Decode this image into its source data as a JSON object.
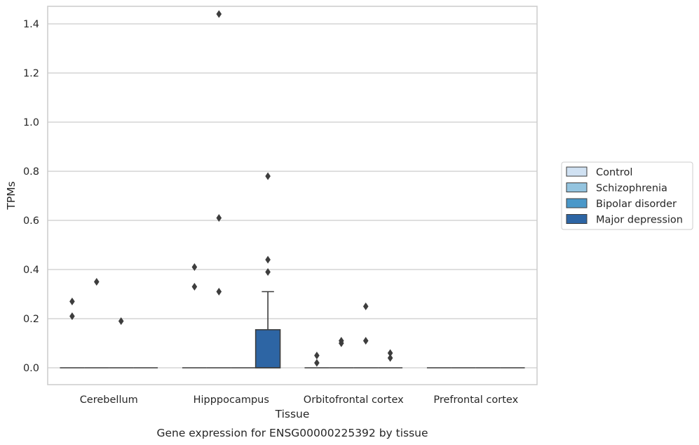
{
  "chart_data": {
    "type": "box",
    "xlabel": "Tissue",
    "ylabel": "TPMs",
    "caption": "Gene expression for ENSG00000225392 by tissue",
    "ylim": [
      -0.07,
      1.51
    ],
    "yticks": [
      0.0,
      0.2,
      0.4,
      0.6,
      0.8,
      1.0,
      1.2,
      1.4
    ],
    "ytick_labels": [
      "0.0",
      "0.2",
      "0.4",
      "0.6",
      "0.8",
      "1.0",
      "1.2",
      "1.4"
    ],
    "grid": "horizontal",
    "legend_position": "right",
    "categories": [
      "Cerebellum",
      "Hipppocampus",
      "Orbitofrontal cortex",
      "Prefrontal cortex"
    ],
    "series": [
      {
        "name": "Control",
        "color": "#d0e1f2"
      },
      {
        "name": "Schizophrenia",
        "color": "#94c4df"
      },
      {
        "name": "Bipolar disorder",
        "color": "#4a98c9"
      },
      {
        "name": "Major depression",
        "color": "#2d65a4"
      }
    ],
    "boxes": [
      {
        "category": 0,
        "series": 0,
        "q1": 0,
        "median": 0,
        "q3": 0,
        "whisker_low": 0,
        "whisker_high": 0,
        "outliers": [
          0.27,
          0.21
        ]
      },
      {
        "category": 0,
        "series": 1,
        "q1": 0,
        "median": 0,
        "q3": 0,
        "whisker_low": 0,
        "whisker_high": 0,
        "outliers": [
          0.35
        ]
      },
      {
        "category": 0,
        "series": 2,
        "q1": 0,
        "median": 0,
        "q3": 0,
        "whisker_low": 0,
        "whisker_high": 0,
        "outliers": [
          0.19
        ]
      },
      {
        "category": 0,
        "series": 3,
        "q1": 0,
        "median": 0,
        "q3": 0,
        "whisker_low": 0,
        "whisker_high": 0,
        "outliers": []
      },
      {
        "category": 1,
        "series": 0,
        "q1": 0,
        "median": 0,
        "q3": 0,
        "whisker_low": 0,
        "whisker_high": 0,
        "outliers": [
          0.41,
          0.33
        ]
      },
      {
        "category": 1,
        "series": 1,
        "q1": 0,
        "median": 0,
        "q3": 0,
        "whisker_low": 0,
        "whisker_high": 0,
        "outliers": [
          1.44,
          0.61,
          0.31
        ]
      },
      {
        "category": 1,
        "series": 2,
        "q1": 0,
        "median": 0,
        "q3": 0,
        "whisker_low": 0,
        "whisker_high": 0,
        "outliers": []
      },
      {
        "category": 1,
        "series": 3,
        "q1": 0,
        "median": 0,
        "q3": 0.155,
        "whisker_low": 0,
        "whisker_high": 0.31,
        "outliers": [
          0.78,
          0.44,
          0.39
        ]
      },
      {
        "category": 2,
        "series": 0,
        "q1": 0,
        "median": 0,
        "q3": 0,
        "whisker_low": 0,
        "whisker_high": 0,
        "outliers": [
          0.05,
          0.02
        ]
      },
      {
        "category": 2,
        "series": 1,
        "q1": 0,
        "median": 0,
        "q3": 0,
        "whisker_low": 0,
        "whisker_high": 0,
        "outliers": [
          0.11,
          0.1
        ]
      },
      {
        "category": 2,
        "series": 2,
        "q1": 0,
        "median": 0,
        "q3": 0,
        "whisker_low": 0,
        "whisker_high": 0,
        "outliers": [
          0.25,
          0.11
        ]
      },
      {
        "category": 2,
        "series": 3,
        "q1": 0,
        "median": 0,
        "q3": 0,
        "whisker_low": 0,
        "whisker_high": 0,
        "outliers": [
          0.06,
          0.04
        ]
      },
      {
        "category": 3,
        "series": 0,
        "q1": 0,
        "median": 0,
        "q3": 0,
        "whisker_low": 0,
        "whisker_high": 0,
        "outliers": []
      },
      {
        "category": 3,
        "series": 1,
        "q1": 0,
        "median": 0,
        "q3": 0,
        "whisker_low": 0,
        "whisker_high": 0,
        "outliers": []
      },
      {
        "category": 3,
        "series": 2,
        "q1": 0,
        "median": 0,
        "q3": 0,
        "whisker_low": 0,
        "whisker_high": 0,
        "outliers": []
      },
      {
        "category": 3,
        "series": 3,
        "q1": 0,
        "median": 0,
        "q3": 0,
        "whisker_low": 0,
        "whisker_high": 0,
        "outliers": []
      }
    ]
  }
}
